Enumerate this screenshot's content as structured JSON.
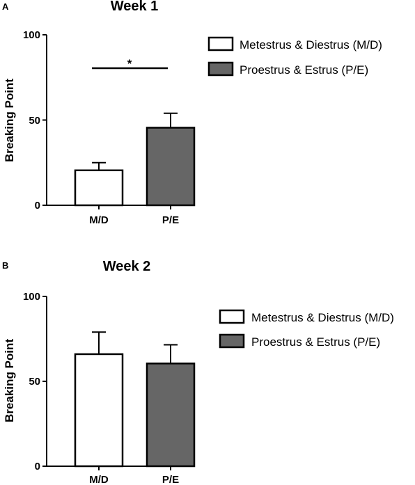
{
  "chart_data": [
    {
      "type": "bar",
      "panel": "A",
      "title": "Week 1",
      "xlabel": "",
      "ylabel": "Breaking Point",
      "categories": [
        "M/D",
        "P/E"
      ],
      "values": [
        20.5,
        45.5
      ],
      "error": [
        4.5,
        8.5
      ],
      "ylim": [
        0,
        100
      ],
      "yticks": [
        0,
        50,
        100
      ],
      "grid": false,
      "legend_position": "right",
      "series": [
        {
          "name": "Metestrus & Diestrus (M/D)",
          "color": "#ffffff"
        },
        {
          "name": "Proestrus & Estrus (P/E)",
          "color": "#666666"
        }
      ],
      "significance": {
        "between": [
          "M/D",
          "P/E"
        ],
        "label": "*"
      }
    },
    {
      "type": "bar",
      "panel": "B",
      "title": "Week 2",
      "xlabel": "",
      "ylabel": "Breaking Point",
      "categories": [
        "M/D",
        "P/E"
      ],
      "values": [
        66,
        60.5
      ],
      "error": [
        13,
        11
      ],
      "ylim": [
        0,
        100
      ],
      "yticks": [
        0,
        50,
        100
      ],
      "grid": false,
      "legend_position": "right",
      "series": [
        {
          "name": "Metestrus & Diestrus (M/D)",
          "color": "#ffffff"
        },
        {
          "name": "Proestrus & Estrus (P/E)",
          "color": "#666666"
        }
      ]
    }
  ]
}
